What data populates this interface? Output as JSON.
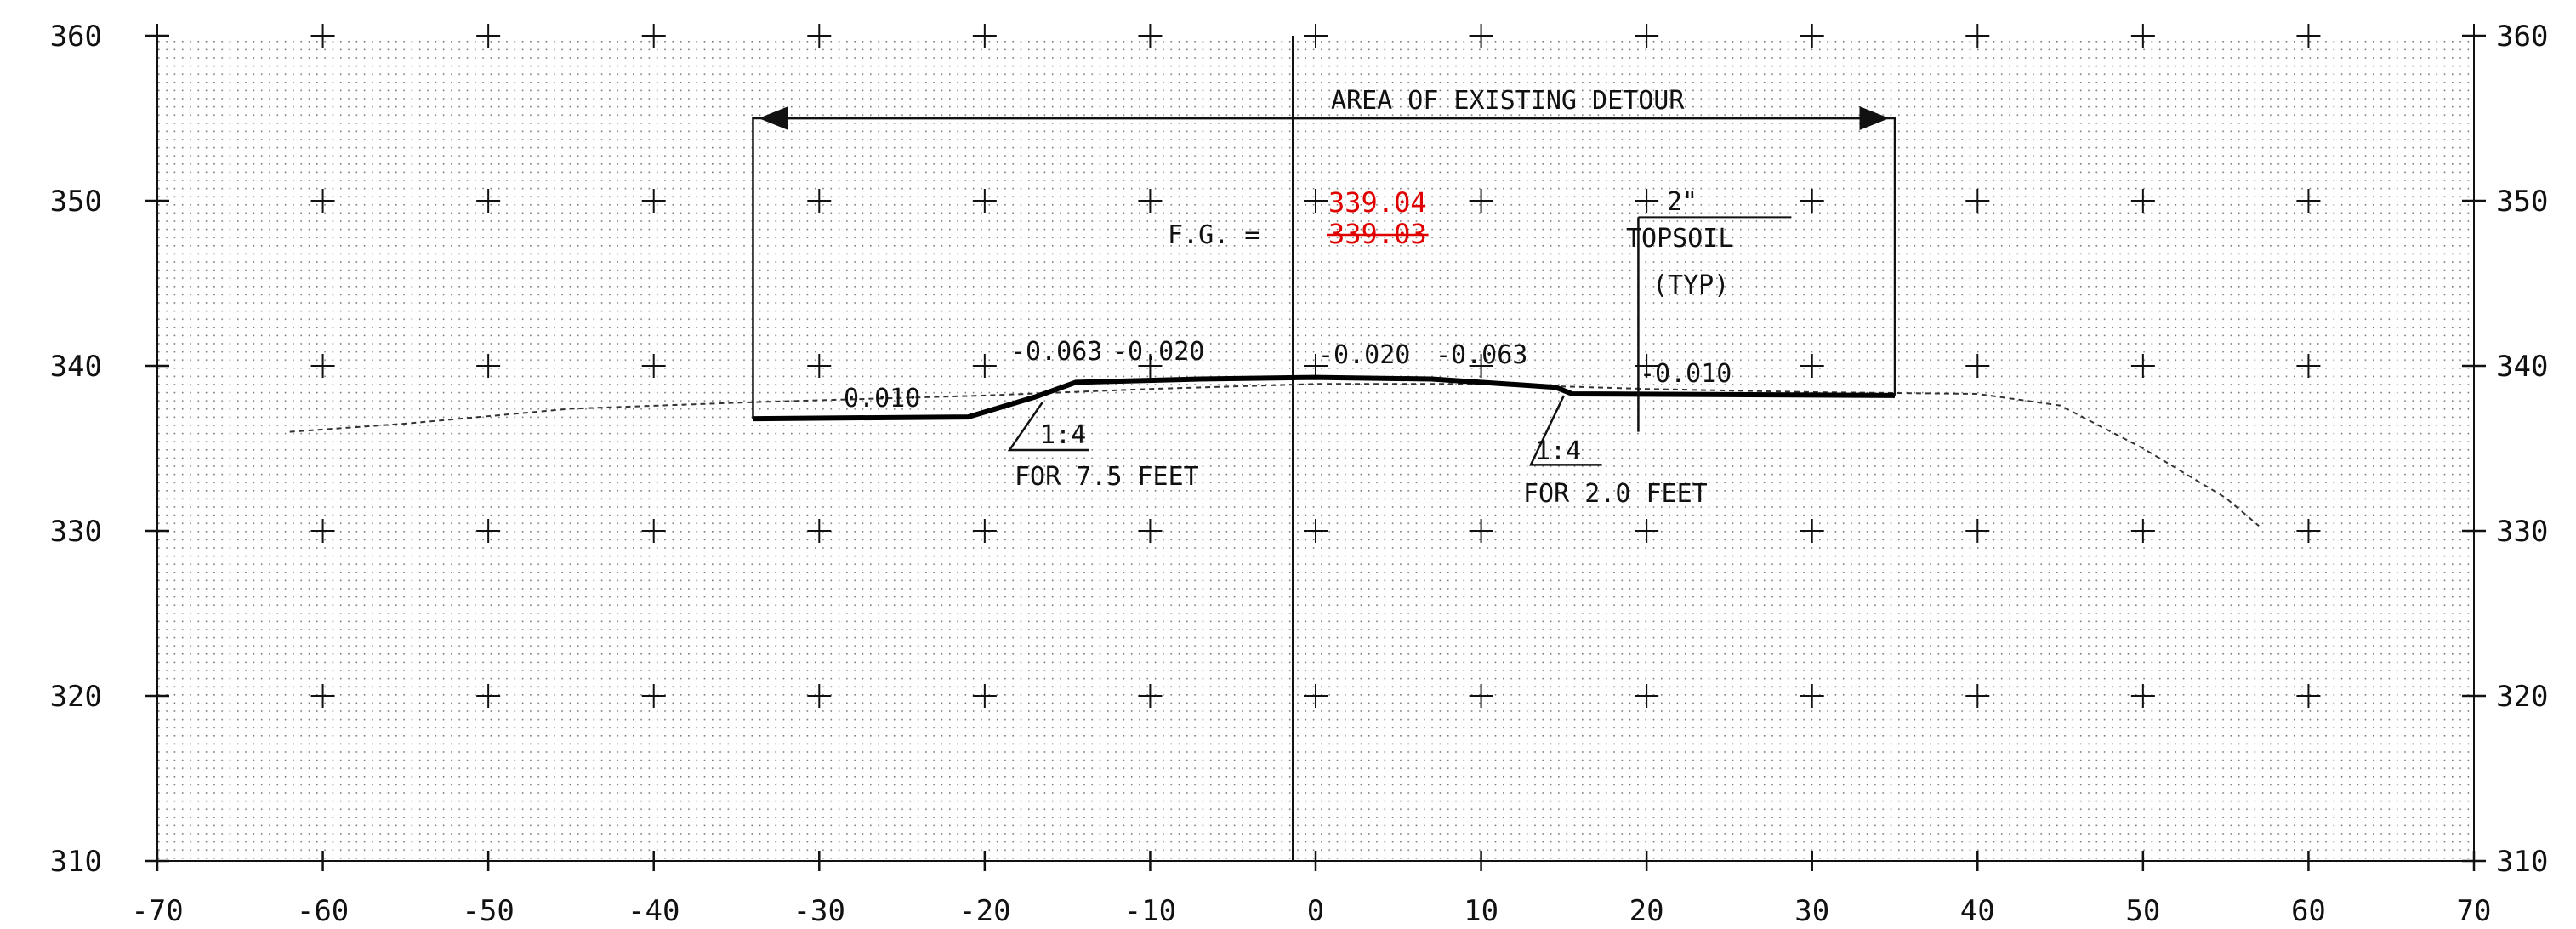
{
  "chart_data": {
    "type": "diagram",
    "x_ticks": [
      -70,
      -60,
      -50,
      -40,
      -30,
      -20,
      -10,
      0,
      10,
      20,
      30,
      40,
      50,
      60,
      70
    ],
    "y_ticks": [
      310,
      320,
      330,
      340,
      350,
      360
    ],
    "xlim": [
      -70,
      70
    ],
    "ylim": [
      310,
      360
    ],
    "grid": "dotted",
    "existing_ground": [
      [
        -62,
        336
      ],
      [
        -55,
        336.5
      ],
      [
        -45,
        337.4
      ],
      [
        -34,
        337.8
      ],
      [
        -20,
        338.2
      ],
      [
        -10,
        338.6
      ],
      [
        0,
        338.9
      ],
      [
        10,
        338.9
      ],
      [
        20,
        338.6
      ],
      [
        30,
        338.4
      ],
      [
        40,
        338.3
      ],
      [
        45,
        337.6
      ],
      [
        50,
        335
      ],
      [
        55,
        332
      ],
      [
        57,
        330.3
      ]
    ],
    "proposed_section": [
      [
        -34,
        336.8
      ],
      [
        -21,
        336.9
      ],
      [
        -17,
        338.1
      ],
      [
        -14.5,
        339
      ],
      [
        -7,
        339.2
      ],
      [
        0,
        339.3
      ],
      [
        7,
        339.2
      ],
      [
        14.5,
        338.7
      ],
      [
        15.5,
        338.3
      ],
      [
        35,
        338.2
      ]
    ],
    "detour_box": {
      "x_left": -34,
      "x_right": 35,
      "y_top": 355,
      "y_bottom": 336.8
    },
    "topsoil_line_x": 19.5
  },
  "labels": {
    "area_detour": "AREA OF EXISTING DETOUR",
    "fg_prefix": "F.G. =",
    "fg_new": "339.04",
    "fg_old": "339.03",
    "topsoil_depth": "2\"",
    "topsoil": "TOPSOIL",
    "topsoil_typ": "(TYP)",
    "slope_left_shoulder": "0.010",
    "slope_left_outer": "-0.063",
    "slope_left_inner": "-0.020",
    "slope_right_inner": "-0.020",
    "slope_right_outer": "-0.063",
    "slope_right_shoulder": "-0.010",
    "ratio_left": "1:4",
    "ratio_left_note": "FOR 7.5 FEET",
    "ratio_right": "1:4",
    "ratio_right_note": "FOR 2.0 FEET"
  }
}
